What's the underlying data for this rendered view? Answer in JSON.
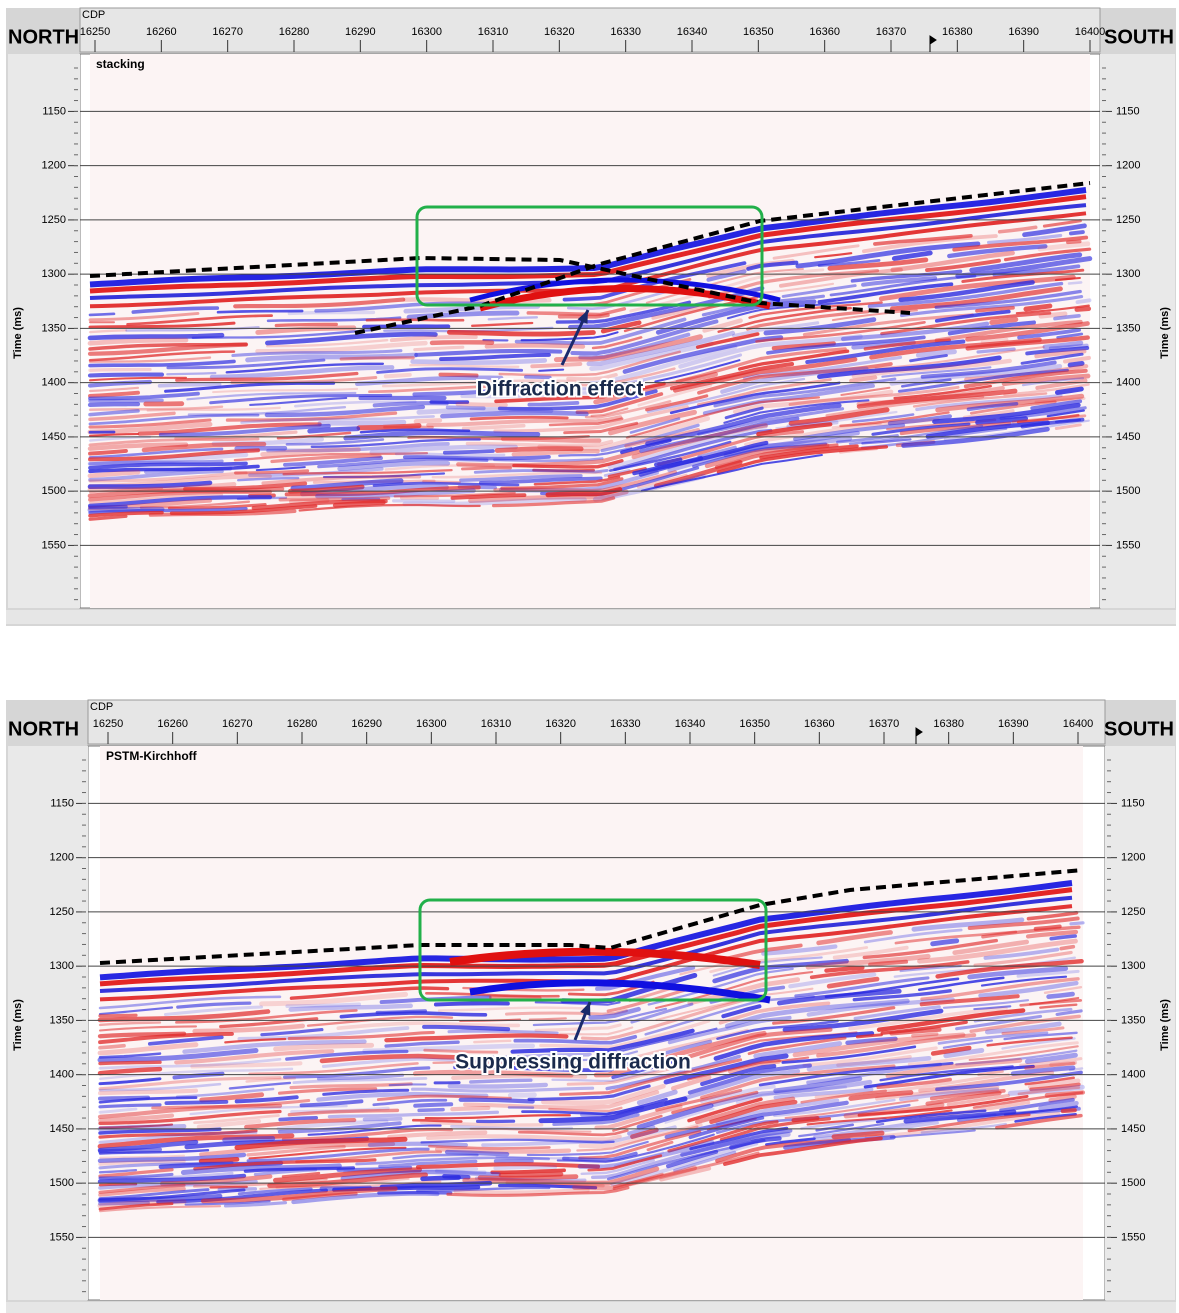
{
  "panels": [
    {
      "north": "NORTH",
      "south": "SOUTH",
      "cdp_label": "CDP",
      "title": "stacking",
      "y_axis_label": "Time (ms)",
      "xticks": [
        16250,
        16260,
        16270,
        16280,
        16290,
        16300,
        16310,
        16320,
        16330,
        16340,
        16350,
        16360,
        16370,
        16380,
        16390,
        16400
      ],
      "yticks": [
        1150,
        1200,
        1250,
        1300,
        1350,
        1400,
        1450,
        1500,
        1550
      ],
      "annotation": "Diffraction effect"
    },
    {
      "north": "NORTH",
      "south": "SOUTH",
      "cdp_label": "CDP",
      "title": "PSTM-Kirchhoff",
      "y_axis_label": "Time (ms)",
      "xticks": [
        16250,
        16260,
        16270,
        16280,
        16290,
        16300,
        16310,
        16320,
        16330,
        16340,
        16350,
        16360,
        16370,
        16380,
        16390,
        16400
      ],
      "yticks": [
        1150,
        1200,
        1250,
        1300,
        1350,
        1400,
        1450,
        1500,
        1550
      ],
      "annotation": "Suppressing diffraction"
    }
  ]
}
